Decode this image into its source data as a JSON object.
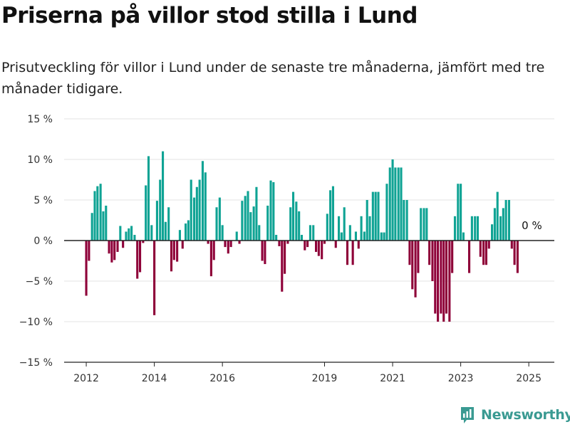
{
  "title": "Priserna på villor stod stilla i Lund",
  "subtitle": "Prisutveckling för villor i Lund under de senaste tre månaderna, jämfört med tre månader tidigare.",
  "brand": "Newsworthy",
  "colors": {
    "positive": "#0fa394",
    "negative": "#8e0038",
    "grid": "#e3e3e3",
    "zero_line": "#222222",
    "brand": "#3a9a92"
  },
  "chart_data": {
    "type": "bar",
    "ylim": [
      -15,
      15
    ],
    "y_ticks": [
      15,
      10,
      5,
      0,
      -5,
      -10,
      -15
    ],
    "y_tick_labels": [
      "15 %",
      "10 %",
      "5 %",
      "0 %",
      "−5 %",
      "−10 %",
      "−15 %"
    ],
    "x_tick_labels": [
      "2012",
      "2014",
      "2016",
      "2019",
      "2021",
      "2023",
      "2025"
    ],
    "x_tick_positions": [
      2012.0,
      2014.0,
      2016.0,
      2019.0,
      2021.0,
      2023.0,
      2025.0
    ],
    "x_range": [
      2011.35,
      2025.75
    ],
    "grid": true,
    "last_value_label": "0 %",
    "x": [
      2012.0,
      2012.08,
      2012.17,
      2012.25,
      2012.33,
      2012.42,
      2012.5,
      2012.58,
      2012.67,
      2012.75,
      2012.83,
      2012.92,
      2013.0,
      2013.08,
      2013.17,
      2013.25,
      2013.33,
      2013.42,
      2013.5,
      2013.58,
      2013.67,
      2013.75,
      2013.83,
      2013.92,
      2014.0,
      2014.08,
      2014.17,
      2014.25,
      2014.33,
      2014.42,
      2014.5,
      2014.58,
      2014.67,
      2014.75,
      2014.83,
      2014.92,
      2015.0,
      2015.08,
      2015.17,
      2015.25,
      2015.33,
      2015.42,
      2015.5,
      2015.58,
      2015.67,
      2015.75,
      2015.83,
      2015.92,
      2016.0,
      2016.08,
      2016.17,
      2016.25,
      2016.33,
      2016.42,
      2016.5,
      2016.58,
      2016.67,
      2016.75,
      2016.83,
      2016.92,
      2017.0,
      2017.08,
      2017.17,
      2017.25,
      2017.33,
      2017.42,
      2017.5,
      2017.58,
      2017.67,
      2017.75,
      2017.83,
      2017.92,
      2018.0,
      2018.08,
      2018.17,
      2018.25,
      2018.33,
      2018.42,
      2018.5,
      2018.58,
      2018.67,
      2018.75,
      2018.83,
      2018.92,
      2019.0,
      2019.08,
      2019.17,
      2019.25,
      2019.33,
      2019.42,
      2019.5,
      2019.58,
      2019.67,
      2019.75,
      2019.83,
      2019.92,
      2020.0,
      2020.08,
      2020.17,
      2020.25,
      2020.33,
      2020.42,
      2020.5,
      2020.58,
      2020.67,
      2020.75,
      2020.83,
      2020.92,
      2021.0,
      2021.08,
      2021.17,
      2021.25,
      2021.33,
      2021.42,
      2021.5,
      2021.58,
      2021.67,
      2021.75,
      2021.83,
      2021.92,
      2022.0,
      2022.08,
      2022.17,
      2022.25,
      2022.33,
      2022.42,
      2022.5,
      2022.58,
      2022.67,
      2022.75,
      2022.83,
      2022.92,
      2023.0,
      2023.08,
      2023.17,
      2023.25,
      2023.33,
      2023.42,
      2023.5,
      2023.58,
      2023.67,
      2023.75,
      2023.83,
      2023.92,
      2024.0,
      2024.08,
      2024.17,
      2024.25,
      2024.33,
      2024.42,
      2024.5,
      2024.58,
      2024.67,
      2024.75,
      2024.83,
      2024.92,
      2025.0
    ],
    "values": [
      -6.8,
      -2.5,
      3.4,
      6.1,
      6.7,
      7.0,
      3.6,
      4.3,
      -1.6,
      -2.7,
      -2.4,
      -1.4,
      1.8,
      -0.9,
      1.1,
      1.5,
      1.8,
      0.7,
      -4.7,
      -3.9,
      -0.3,
      6.8,
      10.4,
      1.9,
      -9.2,
      4.9,
      7.5,
      11.0,
      2.3,
      4.1,
      -3.8,
      -2.4,
      -2.6,
      1.3,
      -1.0,
      2.1,
      2.5,
      7.5,
      5.3,
      6.6,
      7.5,
      9.8,
      8.4,
      -0.4,
      -4.4,
      -2.4,
      4.1,
      5.3,
      1.9,
      -0.8,
      -1.6,
      -0.8,
      0.0,
      1.1,
      -0.4,
      4.9,
      5.5,
      6.1,
      3.5,
      4.2,
      6.6,
      1.9,
      -2.5,
      -2.9,
      4.3,
      7.4,
      7.2,
      0.7,
      -0.7,
      -6.3,
      -4.1,
      -0.4,
      4.1,
      6.0,
      4.8,
      3.6,
      0.7,
      -1.2,
      -0.8,
      1.9,
      1.9,
      -1.4,
      -1.9,
      -2.3,
      -0.4,
      3.3,
      6.2,
      6.7,
      -0.9,
      3.0,
      1.0,
      4.1,
      -3.0,
      1.9,
      -3.0,
      1.1,
      -1.0,
      3.0,
      1.1,
      5.0,
      3.0,
      6.0,
      6.0,
      6.0,
      1.0,
      1.0,
      7.0,
      9.0,
      10.0,
      9.0,
      9.0,
      9.0,
      5.0,
      5.0,
      -3.0,
      -6.0,
      -7.0,
      -4.0,
      4.0,
      4.0,
      4.0,
      -3.0,
      -5.0,
      -9.0,
      -10.0,
      -9.0,
      -10.0,
      -9.0,
      -10.0,
      -4.0,
      3.0,
      7.0,
      7.0,
      1.0,
      0.0,
      -4.0,
      3.0,
      3.0,
      3.0,
      -2.0,
      -3.0,
      -3.0,
      -1.0,
      2.0,
      4.0,
      6.0,
      3.0,
      4.0,
      5.0,
      5.0,
      -1.0,
      -3.0,
      -4.0,
      0.0,
      0.0,
      0.0,
      0.0
    ]
  }
}
